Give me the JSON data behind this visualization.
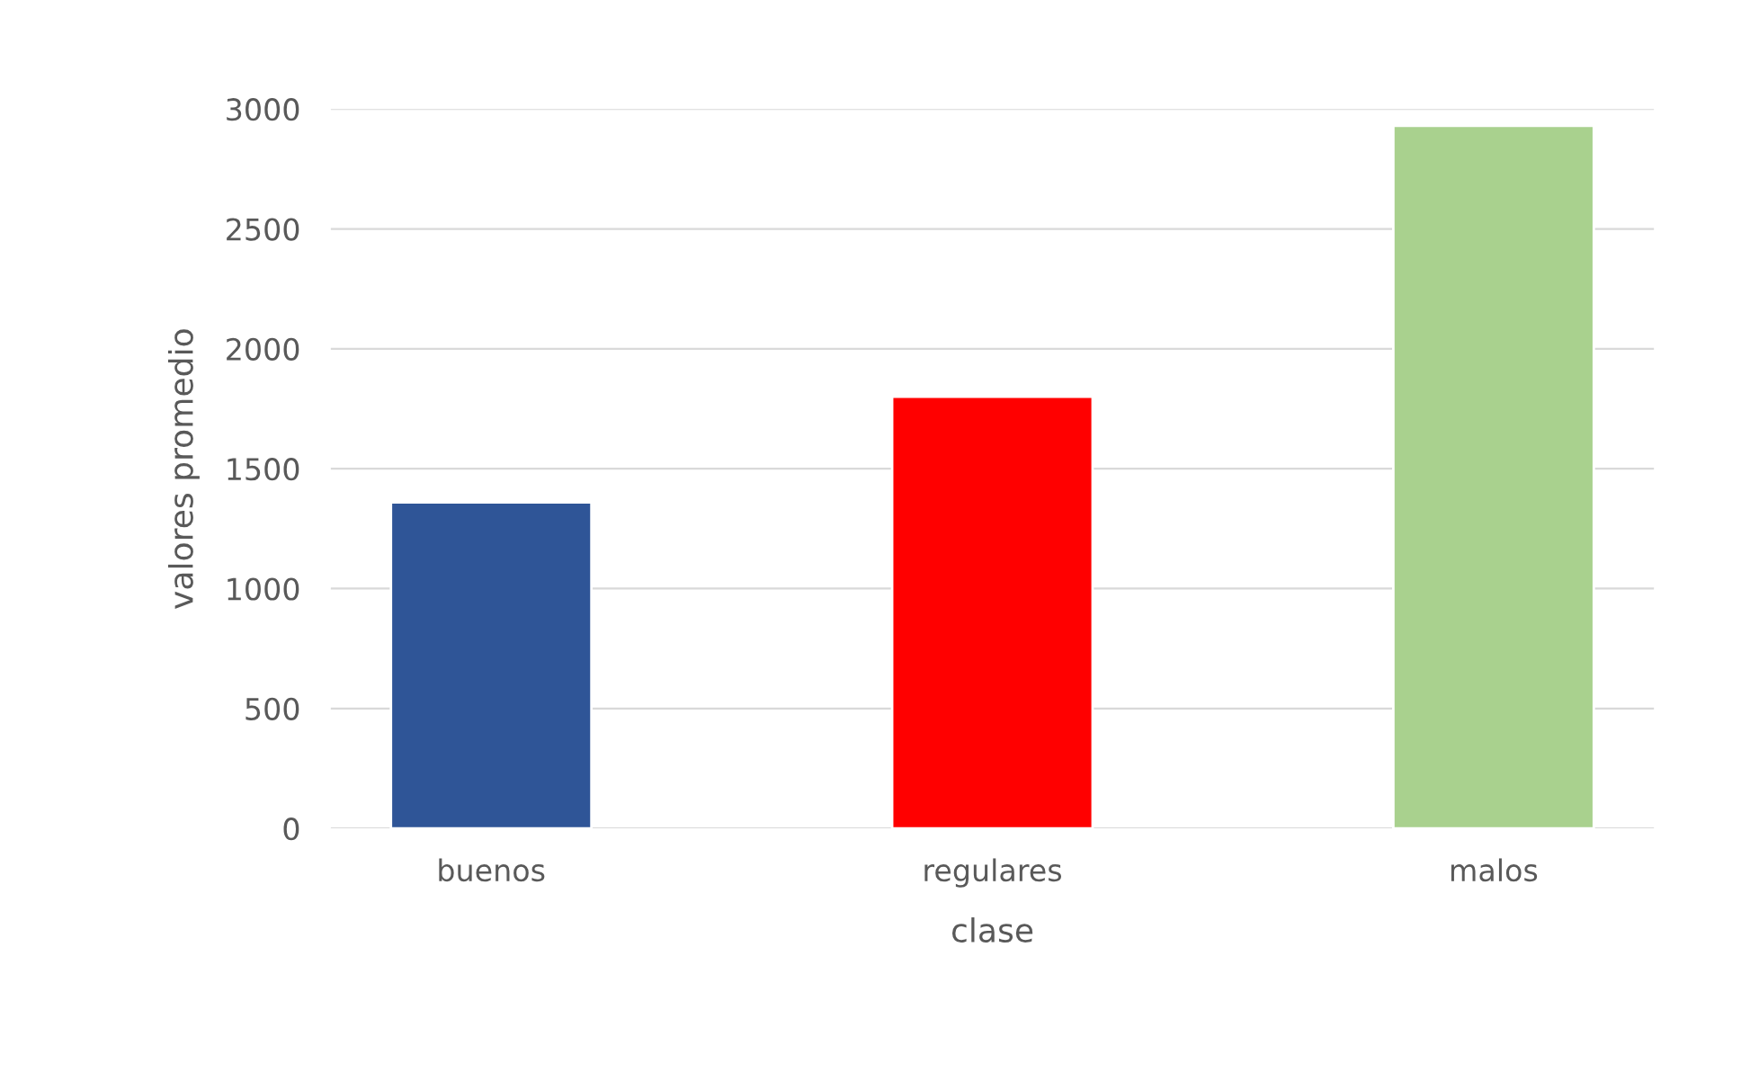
{
  "chart_data": {
    "type": "bar",
    "categories": [
      "buenos",
      "regulares",
      "malos"
    ],
    "values": [
      1360,
      1800,
      2930
    ],
    "colors": [
      "#2f5597",
      "#ff0000",
      "#a9d18e"
    ],
    "xlabel": "clase",
    "ylabel": "valores promedio",
    "ylim": [
      0,
      3000
    ],
    "yticks": [
      0,
      500,
      1000,
      1500,
      2000,
      2500,
      3000
    ],
    "grid": "y"
  }
}
